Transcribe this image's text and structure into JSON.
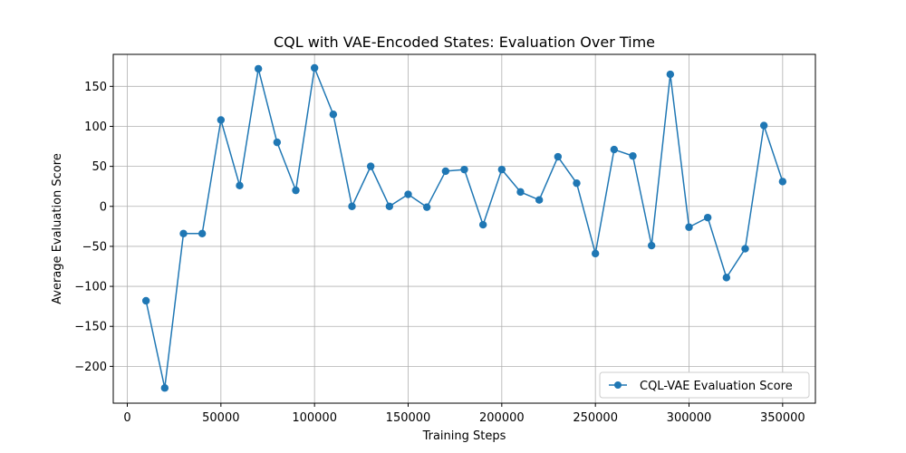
{
  "chart_data": {
    "type": "line",
    "title": "CQL with VAE-Encoded States: Evaluation Over Time",
    "xlabel": "Training Steps",
    "ylabel": "Average Evaluation Score",
    "xlim": [
      -7500,
      367500
    ],
    "ylim": [
      -246,
      190
    ],
    "xticks": [
      0,
      50000,
      100000,
      150000,
      200000,
      250000,
      300000,
      350000
    ],
    "yticks": [
      -200,
      -150,
      -100,
      -50,
      0,
      50,
      100,
      150
    ],
    "xtick_labels": [
      "0",
      "50000",
      "100000",
      "150000",
      "200000",
      "250000",
      "300000",
      "350000"
    ],
    "ytick_labels": [
      "−200",
      "−150",
      "−100",
      "−50",
      "0",
      "50",
      "100",
      "150"
    ],
    "grid": true,
    "legend_position": "lower-right",
    "series": [
      {
        "name": "CQL-VAE Evaluation Score",
        "color": "#1f77b4",
        "marker": "circle",
        "x": [
          10000,
          20000,
          30000,
          40000,
          50000,
          60000,
          70000,
          80000,
          90000,
          100000,
          110000,
          120000,
          130000,
          140000,
          150000,
          160000,
          170000,
          180000,
          190000,
          200000,
          210000,
          220000,
          230000,
          240000,
          250000,
          260000,
          270000,
          280000,
          290000,
          300000,
          310000,
          320000,
          330000,
          340000,
          350000
        ],
        "y": [
          -118,
          -227,
          -34,
          -34,
          108,
          26,
          172,
          80,
          20,
          173,
          115,
          0,
          50,
          0,
          15,
          -1,
          44,
          46,
          -23,
          46,
          18,
          8,
          62,
          29,
          -59,
          71,
          63,
          -49,
          165,
          -26,
          -14,
          -89,
          -53,
          101,
          31
        ]
      }
    ]
  }
}
